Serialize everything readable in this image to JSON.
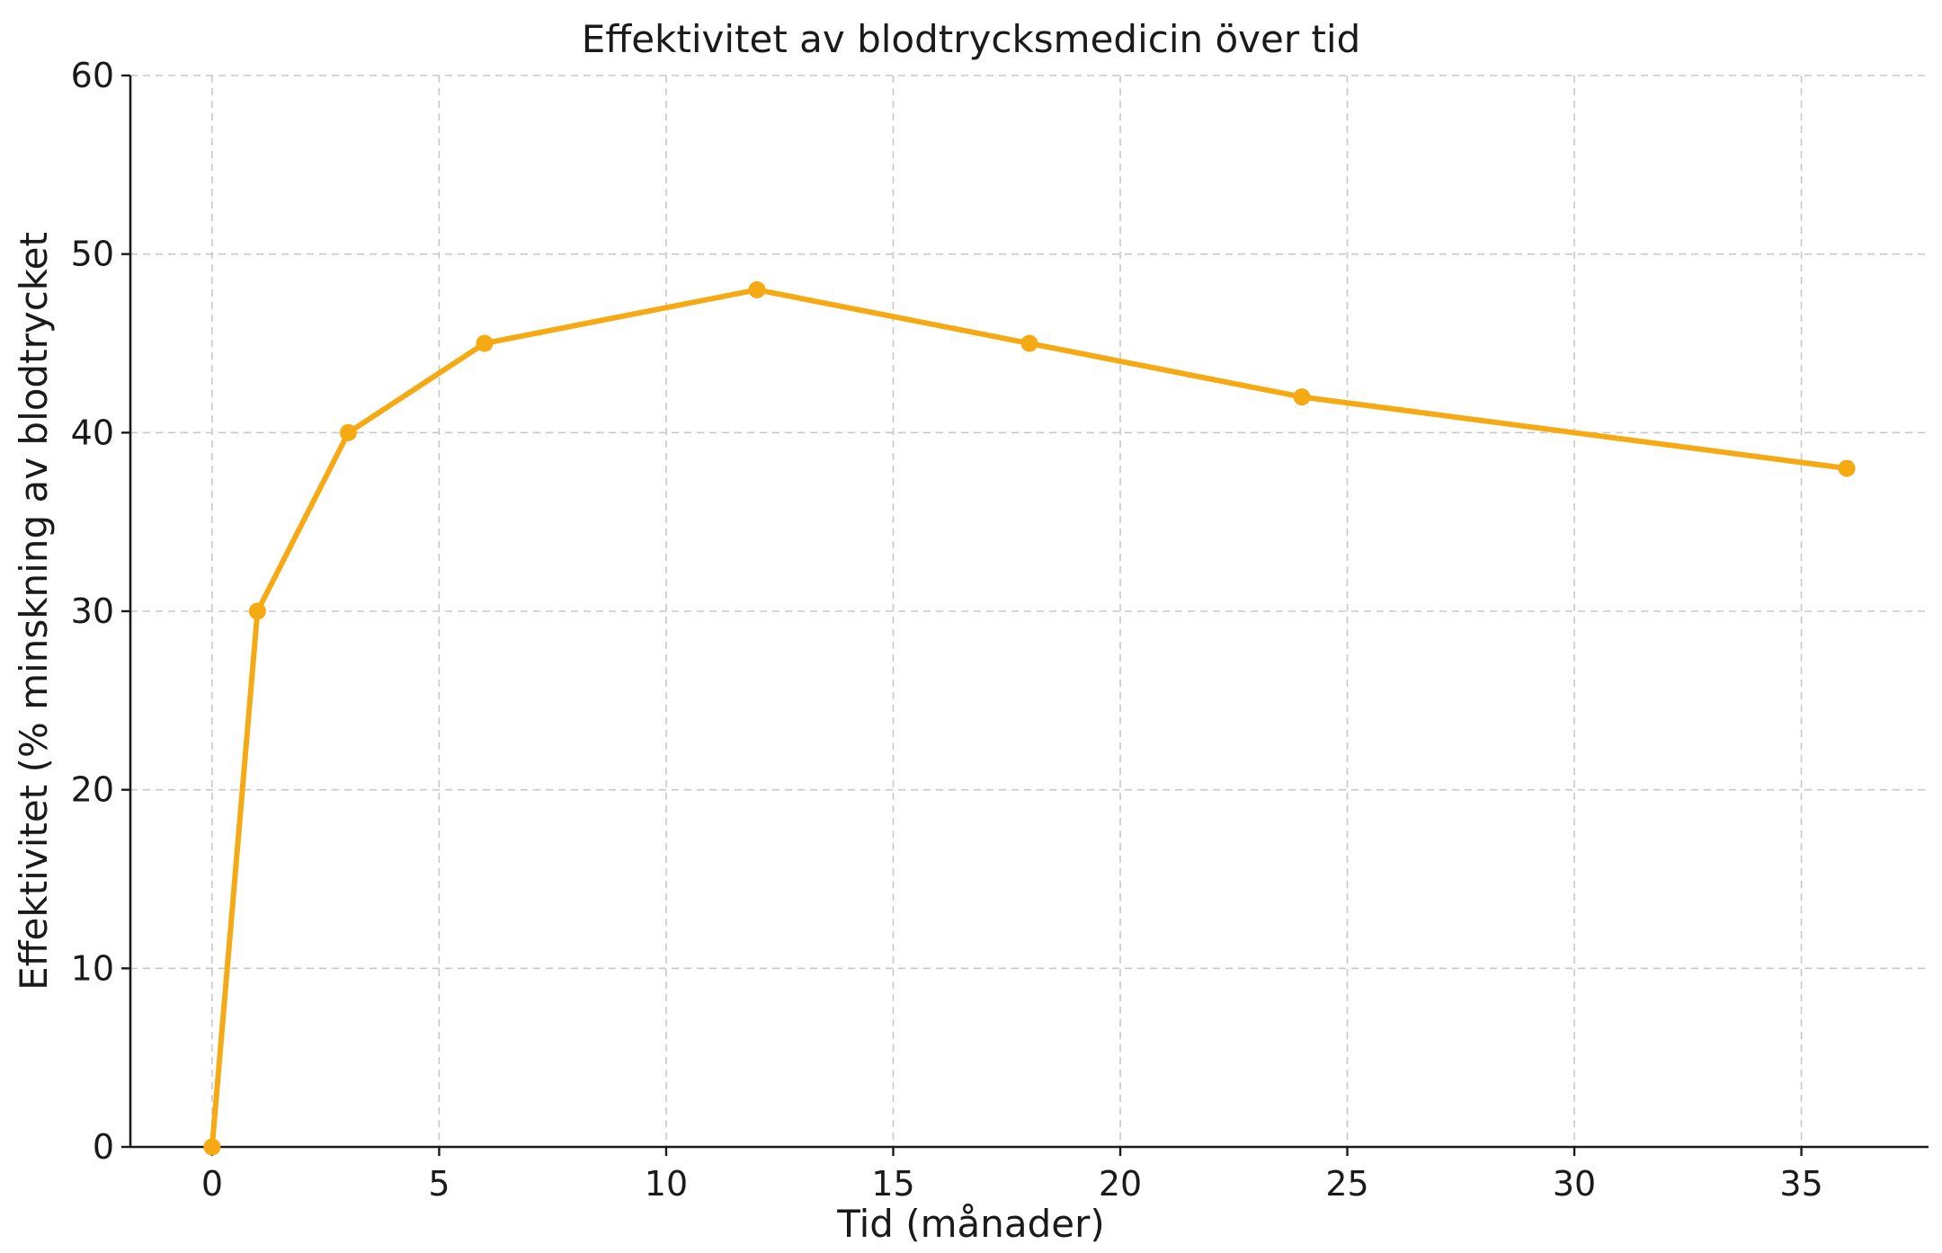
{
  "chart_data": {
    "type": "line",
    "title": "Effektivitet av blodtrycksmedicin över tid",
    "xlabel": "Tid (månader)",
    "ylabel": "Effektivitet (% minskning av blodtrycket",
    "xlim": [
      -1.8,
      37.8
    ],
    "ylim": [
      0,
      60
    ],
    "xticks": [
      0,
      5,
      10,
      15,
      20,
      25,
      30,
      35
    ],
    "yticks": [
      0,
      10,
      20,
      30,
      40,
      50,
      60
    ],
    "grid": true,
    "color": "#F5A913",
    "series": [
      {
        "x": [
          0,
          1,
          3,
          6,
          12,
          18,
          24,
          36
        ],
        "y": [
          0,
          30,
          40,
          45,
          48,
          45,
          42,
          38
        ]
      }
    ]
  }
}
